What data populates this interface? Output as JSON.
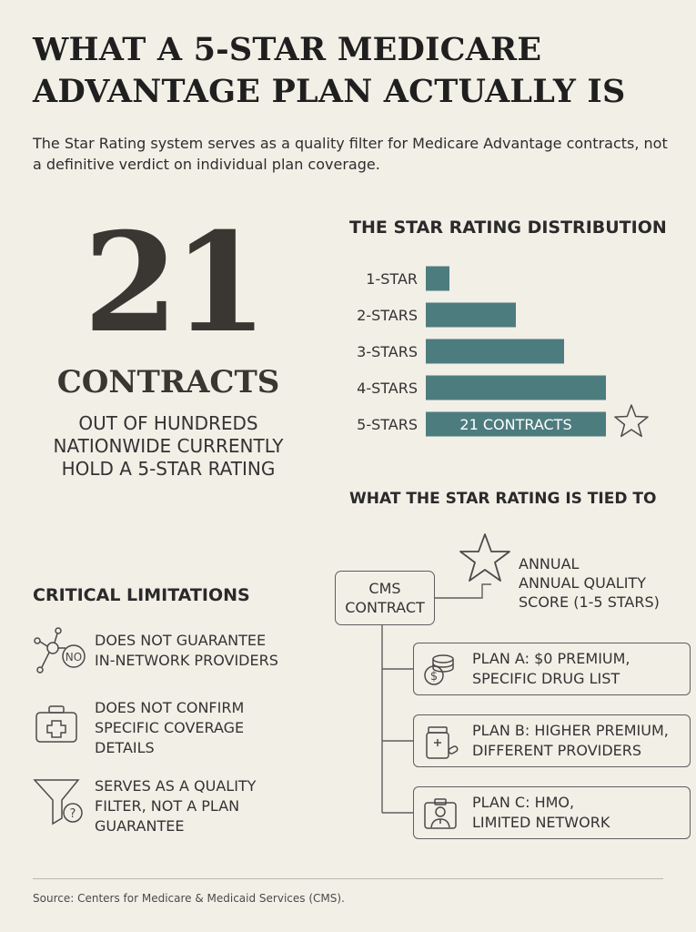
{
  "title": "WHAT A 5-STAR MEDICARE ADVANTAGE PLAN ACTUALLY IS",
  "intro": "The Star Rating system serves as a quality filter for Medicare Advantage contracts, not a definitive verdict on individual plan coverage.",
  "headline": {
    "number": "21",
    "unit": "CONTRACTS",
    "caption": "OUT OF HUNDREDS\nNATIONWIDE CURRENTLY\nHOLD A 5-STAR RATING"
  },
  "chart_data": {
    "type": "bar",
    "orientation": "horizontal",
    "title": "THE STAR RATING DISTRIBUTION",
    "categories": [
      "1-STAR",
      "2-STARS",
      "3-STARS",
      "4-STARS",
      "5-STARS"
    ],
    "values": [
      0.13,
      0.5,
      0.77,
      1.0,
      1.0
    ],
    "values_note": "relative bar lengths (no axis printed)",
    "bar_labels": [
      "",
      "",
      "",
      "",
      "21 CONTRACTS"
    ],
    "highlight_icon": "star-outline-icon",
    "bar_color": "#4d7c7f",
    "grid": false,
    "legend": "none"
  },
  "tied_to": {
    "title": "WHAT THE STAR RATING IS TIED TO",
    "root": "CMS\nCONTRACT",
    "score_icon": "star-outline-icon",
    "score_text": "ANNUAL\nANNUAL QUALITY\nSCORE (1-5 STARS)",
    "plans": [
      {
        "icon": "coins-icon",
        "text": "PLAN A: $0 PREMIUM,\nSPECIFIC DRUG LIST"
      },
      {
        "icon": "pill-bottle-icon",
        "text": "PLAN B: HIGHER PREMIUM,\nDIFFERENT PROVIDERS"
      },
      {
        "icon": "doctor-badge-icon",
        "text": "PLAN C: HMO,\nLIMITED NETWORK"
      }
    ]
  },
  "limitations": {
    "title": "CRITICAL LIMITATIONS",
    "items": [
      {
        "icon": "network-no-icon",
        "no_label": "NO",
        "text": "DOES NOT GUARANTEE\nIN-NETWORK PROVIDERS"
      },
      {
        "icon": "medical-kit-icon",
        "text": "DOES NOT CONFIRM\nSPECIFIC COVERAGE\nDETAILS"
      },
      {
        "icon": "funnel-question-icon",
        "q_label": "?",
        "text": "SERVES AS A QUALITY\nFILTER, NOT A PLAN\nGUARANTEE"
      }
    ]
  },
  "source": "Source: Centers for Medicare & Medicaid Services (CMS).",
  "colors": {
    "background": "#f2efe7",
    "accent": "#4d7c7f",
    "text": "#2b2b2b",
    "line": "#5e5e5e"
  }
}
